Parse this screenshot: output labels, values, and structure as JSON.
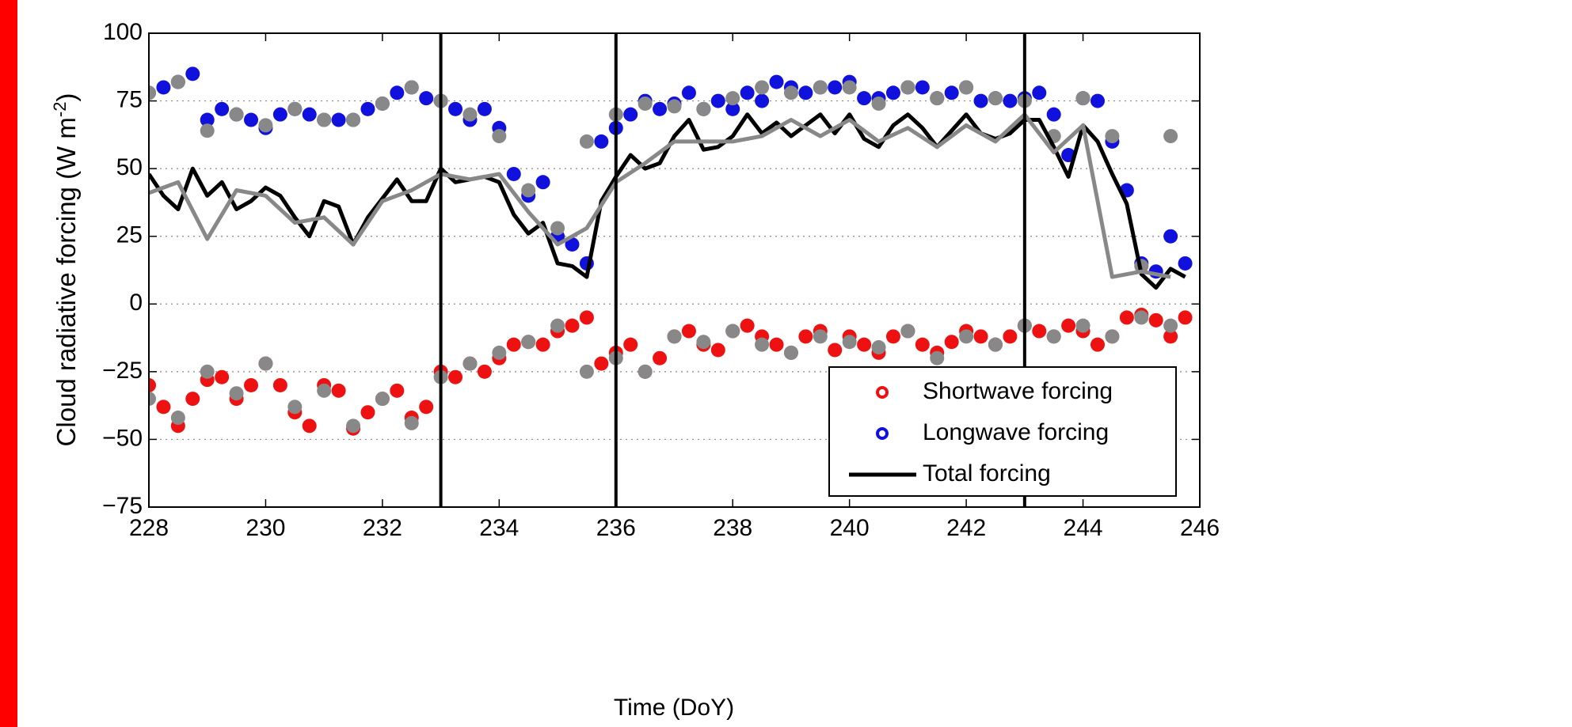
{
  "chart_data": {
    "type": "scatter",
    "ylabel": [
      "Cloud radiative forcing (W m",
      "-2",
      ")"
    ],
    "xlabel": "Time (DoY)",
    "xlim": [
      228,
      246
    ],
    "xticks": [
      228,
      230,
      232,
      234,
      236,
      238,
      240,
      242,
      244,
      246
    ],
    "ylim": [
      -75,
      100
    ],
    "yticks": [
      {
        "value": -75,
        "label": "−75"
      },
      {
        "value": -50,
        "label": "−50"
      },
      {
        "value": -25,
        "label": "−25"
      },
      0,
      25,
      50,
      75,
      100
    ],
    "grid": true,
    "legend": "lower right",
    "vlines": [
      233,
      236,
      243
    ],
    "vline_color": "#000000",
    "x": [
      228.0,
      228.25,
      228.5,
      228.75,
      229.0,
      229.25,
      229.5,
      229.75,
      230.0,
      230.25,
      230.5,
      230.75,
      231.0,
      231.25,
      231.5,
      231.75,
      232.0,
      232.25,
      232.5,
      232.75,
      233.0,
      233.25,
      233.5,
      233.75,
      234.0,
      234.25,
      234.5,
      234.75,
      235.0,
      235.25,
      235.5,
      235.75,
      236.0,
      236.25,
      236.5,
      236.75,
      237.0,
      237.25,
      237.5,
      237.75,
      238.0,
      238.25,
      238.5,
      238.75,
      239.0,
      239.25,
      239.5,
      239.75,
      240.0,
      240.25,
      240.5,
      240.75,
      241.0,
      241.25,
      241.5,
      241.75,
      242.0,
      242.25,
      242.5,
      242.75,
      243.0,
      243.25,
      243.5,
      243.75,
      244.0,
      244.25,
      244.5,
      244.75,
      245.0,
      245.25,
      245.5,
      245.75
    ],
    "series": [
      {
        "name": "Shortwave forcing",
        "color": "#ee1111",
        "type": "scatter",
        "values": [
          -30,
          -38,
          -45,
          -35,
          -28,
          -27,
          -35,
          -30,
          -22,
          -30,
          -40,
          -45,
          -30,
          -32,
          -46,
          -40,
          -35,
          -32,
          -42,
          -38,
          -25,
          -27,
          -22,
          -25,
          -20,
          -15,
          -14,
          -15,
          -10,
          -8,
          -5,
          -22,
          -18,
          -15,
          -25,
          -20,
          -12,
          -10,
          -15,
          -17,
          -10,
          -8,
          -12,
          -15,
          -18,
          -12,
          -10,
          -17,
          -12,
          -15,
          -18,
          -12,
          -10,
          -15,
          -18,
          -14,
          -10,
          -12,
          -15,
          -12,
          -8,
          -10,
          -12,
          -8,
          -10,
          -15,
          -12,
          -5,
          -4,
          -6,
          -12,
          -5
        ]
      },
      {
        "name": "Longwave forcing",
        "color": "#1111dd",
        "type": "scatter",
        "values": [
          78,
          80,
          82,
          85,
          68,
          72,
          70,
          68,
          65,
          70,
          72,
          70,
          68,
          68,
          68,
          72,
          74,
          78,
          80,
          76,
          75,
          72,
          68,
          72,
          65,
          48,
          40,
          45,
          25,
          22,
          15,
          60,
          65,
          70,
          75,
          72,
          74,
          78,
          72,
          75,
          72,
          78,
          75,
          82,
          80,
          78,
          80,
          80,
          82,
          76,
          76,
          78,
          80,
          80,
          76,
          78,
          80,
          75,
          76,
          75,
          76,
          78,
          70,
          55,
          76,
          75,
          60,
          42,
          15,
          12,
          25,
          15
        ]
      },
      {
        "name": "Total forcing",
        "color": "#000000",
        "type": "line",
        "values": [
          48,
          40,
          35,
          50,
          40,
          45,
          35,
          38,
          43,
          40,
          32,
          25,
          38,
          36,
          22,
          32,
          39,
          46,
          38,
          38,
          50,
          45,
          46,
          47,
          45,
          33,
          26,
          30,
          15,
          14,
          10,
          38,
          47,
          55,
          50,
          52,
          62,
          68,
          57,
          58,
          62,
          70,
          63,
          67,
          62,
          66,
          70,
          63,
          70,
          61,
          58,
          66,
          70,
          65,
          58,
          64,
          70,
          63,
          61,
          63,
          68,
          68,
          58,
          47,
          66,
          60,
          48,
          37,
          11,
          6,
          13,
          10
        ]
      },
      {
        "color": "#888888",
        "type": "scatter",
        "x": [
          228.0,
          228.5,
          229.0,
          229.5,
          230.0,
          230.5,
          231.0,
          231.5,
          232.0,
          232.5,
          233.0,
          233.5,
          234.0,
          234.5,
          235.0,
          235.5,
          236.0,
          236.5,
          237.0,
          237.5,
          238.0,
          238.5,
          239.0,
          239.5,
          240.0,
          240.5,
          241.0,
          241.5,
          242.0,
          242.5,
          243.0,
          243.5,
          244.0,
          244.5,
          245.0,
          245.5
        ],
        "values": [
          -35,
          -42,
          -25,
          -33,
          -22,
          -38,
          -32,
          -45,
          -35,
          -44,
          -27,
          -22,
          -18,
          -14,
          -8,
          -25,
          -20,
          -25,
          -12,
          -14,
          -10,
          -15,
          -18,
          -12,
          -14,
          -16,
          -10,
          -20,
          -12,
          -15,
          -8,
          -12,
          -8,
          -12,
          -5,
          -8
        ]
      },
      {
        "color": "#888888",
        "type": "scatter",
        "x": [
          228.0,
          228.5,
          229.0,
          229.5,
          230.0,
          230.5,
          231.0,
          231.5,
          232.0,
          232.5,
          233.0,
          233.5,
          234.0,
          234.5,
          235.0,
          235.5,
          236.0,
          236.5,
          237.0,
          237.5,
          238.0,
          238.5,
          239.0,
          239.5,
          240.0,
          240.5,
          241.0,
          241.5,
          242.0,
          242.5,
          243.0,
          243.5,
          244.0,
          244.5,
          245.0,
          245.5
        ],
        "values": [
          78,
          82,
          64,
          70,
          66,
          72,
          68,
          68,
          74,
          80,
          75,
          70,
          62,
          42,
          28,
          60,
          70,
          74,
          73,
          72,
          76,
          80,
          78,
          80,
          80,
          74,
          80,
          76,
          80,
          76,
          75,
          62,
          76,
          62,
          14,
          62
        ]
      },
      {
        "color": "#888888",
        "type": "line",
        "x": [
          228.0,
          228.5,
          229.0,
          229.5,
          230.0,
          230.5,
          231.0,
          231.5,
          232.0,
          232.5,
          233.0,
          233.5,
          234.0,
          234.5,
          235.0,
          235.5,
          236.0,
          236.5,
          237.0,
          237.5,
          238.0,
          238.5,
          239.0,
          239.5,
          240.0,
          240.5,
          241.0,
          241.5,
          242.0,
          242.5,
          243.0,
          243.5,
          244.0,
          244.5,
          245.0,
          245.5
        ],
        "values": [
          41,
          45,
          24,
          42,
          40,
          30,
          32,
          22,
          38,
          42,
          48,
          46,
          48,
          34,
          22,
          28,
          45,
          52,
          60,
          60,
          60,
          62,
          68,
          62,
          68,
          60,
          65,
          58,
          66,
          60,
          70,
          56,
          66,
          10,
          12,
          10
        ]
      }
    ]
  }
}
